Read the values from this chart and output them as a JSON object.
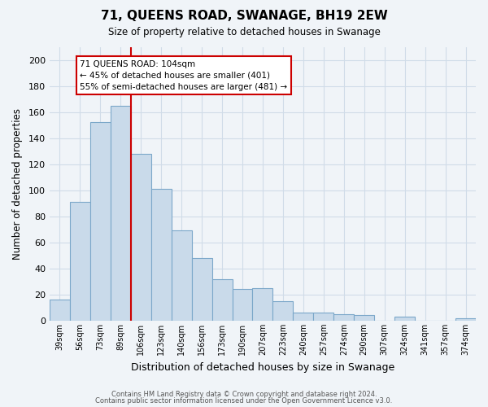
{
  "title": "71, QUEENS ROAD, SWANAGE, BH19 2EW",
  "subtitle": "Size of property relative to detached houses in Swanage",
  "xlabel": "Distribution of detached houses by size in Swanage",
  "ylabel": "Number of detached properties",
  "bar_color": "#c9daea",
  "bar_edge_color": "#7ba7c9",
  "categories": [
    "39sqm",
    "56sqm",
    "73sqm",
    "89sqm",
    "106sqm",
    "123sqm",
    "140sqm",
    "156sqm",
    "173sqm",
    "190sqm",
    "207sqm",
    "223sqm",
    "240sqm",
    "257sqm",
    "274sqm",
    "290sqm",
    "307sqm",
    "324sqm",
    "341sqm",
    "357sqm",
    "374sqm"
  ],
  "values": [
    16,
    91,
    152,
    165,
    128,
    101,
    69,
    48,
    32,
    24,
    25,
    15,
    6,
    6,
    5,
    4,
    0,
    3,
    0,
    0,
    2
  ],
  "vline_index": 4,
  "vline_color": "#cc0000",
  "annotation_title": "71 QUEENS ROAD: 104sqm",
  "annotation_line1": "← 45% of detached houses are smaller (401)",
  "annotation_line2": "55% of semi-detached houses are larger (481) →",
  "annotation_box_facecolor": "#ffffff",
  "annotation_box_edgecolor": "#cc0000",
  "ylim": [
    0,
    210
  ],
  "yticks": [
    0,
    20,
    40,
    60,
    80,
    100,
    120,
    140,
    160,
    180,
    200
  ],
  "footer_line1": "Contains HM Land Registry data © Crown copyright and database right 2024.",
  "footer_line2": "Contains public sector information licensed under the Open Government Licence v3.0.",
  "grid_color": "#d0dce8",
  "background_color": "#f0f4f8",
  "figsize": [
    6.0,
    5.0
  ],
  "dpi": 100
}
